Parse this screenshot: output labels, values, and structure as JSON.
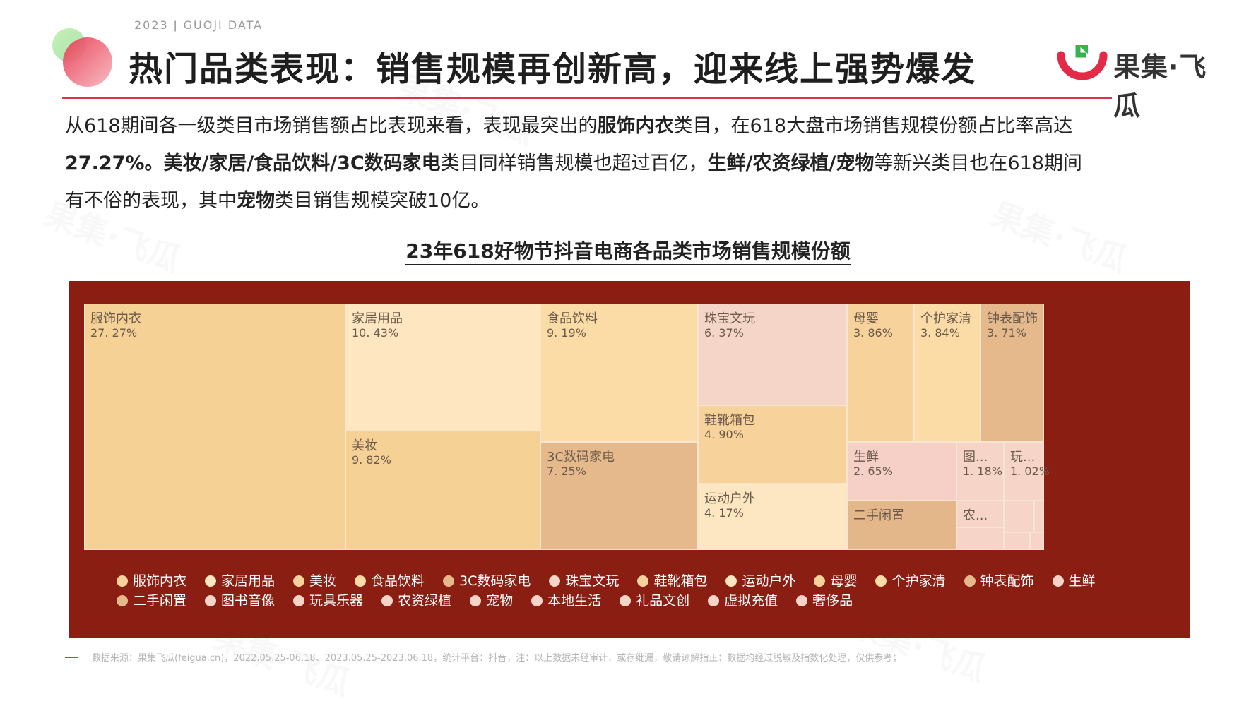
{
  "header": {
    "topline": "2023 ǀ GUOJI DATA",
    "title": "热门品类表现：销售规模再创新高，迎来线上强势爆发",
    "brand": "果集·飞瓜"
  },
  "colors": {
    "accent": "#d8344c",
    "panel": "#8b1e12"
  },
  "description": {
    "l1_a": "从618期间各一级类目市场销售额占比表现来看，表现最突出的",
    "l1_b": "服饰内衣",
    "l1_c": "类目，在618大盘市场销售规模份额占比率高达",
    "l2_a": "27.27%。美妆/家居/食品饮料/3C数码家电",
    "l2_b": "类目同样销售规模也超过百亿，",
    "l2_c": "生鲜/农资绿植/宠物",
    "l2_d": "等新兴类目也在618期间",
    "l3_a": "有不俗的表现，其中",
    "l3_b": "宠物",
    "l3_c": "类目销售规模突破10亿。"
  },
  "chart_data": {
    "type": "treemap",
    "title": "23年618好物节抖音电商各品类市场销售规模份额",
    "items": [
      {
        "name": "服饰内衣",
        "label": "服饰内衣",
        "value": 27.27,
        "value_label": "27. 27%",
        "color": "#f6d196"
      },
      {
        "name": "家居用品",
        "label": "家居用品",
        "value": 10.43,
        "value_label": "10. 43%",
        "color": "#fde6c0"
      },
      {
        "name": "美妆",
        "label": "美妆",
        "value": 9.82,
        "value_label": "9. 82%",
        "color": "#f6d196"
      },
      {
        "name": "食品饮料",
        "label": "食品饮料",
        "value": 9.19,
        "value_label": "9. 19%",
        "color": "#fbdba6"
      },
      {
        "name": "3C数码家电",
        "label": "3C数码家电",
        "value": 7.25,
        "value_label": "7. 25%",
        "color": "#e5b98c"
      },
      {
        "name": "珠宝文玩",
        "label": "珠宝文玩",
        "value": 6.37,
        "value_label": "6. 37%",
        "color": "#f5d5c7"
      },
      {
        "name": "鞋靴箱包",
        "label": "鞋靴箱包",
        "value": 4.9,
        "value_label": "4. 90%",
        "color": "#f7d29a"
      },
      {
        "name": "运动户外",
        "label": "运动户外",
        "value": 4.17,
        "value_label": "4. 17%",
        "color": "#fde7c2"
      },
      {
        "name": "母婴",
        "label": "母婴",
        "value": 3.86,
        "value_label": "3. 86%",
        "color": "#f7d29a"
      },
      {
        "name": "个护家清",
        "label": "个护家清",
        "value": 3.84,
        "value_label": "3. 84%",
        "color": "#fbdba6"
      },
      {
        "name": "钟表配饰",
        "label": "钟表配饰",
        "value": 3.71,
        "value_label": "3. 71%",
        "color": "#e5b98c"
      },
      {
        "name": "生鲜",
        "label": "生鲜",
        "value": 2.65,
        "value_label": "2. 65%",
        "color": "#f6cfc6"
      },
      {
        "name": "二手闲置",
        "label": "二手闲置",
        "value_label": "",
        "color": "#e4b78a"
      },
      {
        "name": "图书音像",
        "label": "图...",
        "value": 1.18,
        "value_label": "1. 18%",
        "color": "#f6d5c8"
      },
      {
        "name": "玩具乐器",
        "label": "玩...",
        "value": 1.02,
        "value_label": "1. 02%",
        "color": "#f6d5c8"
      },
      {
        "name": "农资绿植",
        "label": "农...",
        "value_label": "",
        "color": "#f6d5c8"
      },
      {
        "name": "宠物",
        "label": "",
        "value_label": "",
        "color": "#f6d5c8"
      },
      {
        "name": "本地生活",
        "label": "",
        "value_label": "",
        "color": "#f6d5c8"
      },
      {
        "name": "礼品文创",
        "label": "",
        "value_label": "",
        "color": "#f6d5c8"
      },
      {
        "name": "虚拟充值",
        "label": "",
        "value_label": "",
        "color": "#f6d5c8"
      },
      {
        "name": "奢侈品",
        "label": "",
        "value_label": "",
        "color": "#f6d5c8"
      }
    ],
    "legend": [
      {
        "name": "服饰内衣",
        "color": "#f7d29a"
      },
      {
        "name": "家居用品",
        "color": "#fde7c2"
      },
      {
        "name": "美妆",
        "color": "#f7d29a"
      },
      {
        "name": "食品饮料",
        "color": "#fbdba6"
      },
      {
        "name": "3C数码家电",
        "color": "#e5b98c"
      },
      {
        "name": "珠宝文玩",
        "color": "#f6d5c8"
      },
      {
        "name": "鞋靴箱包",
        "color": "#f7d29a"
      },
      {
        "name": "运动户外",
        "color": "#fde7c2"
      },
      {
        "name": "母婴",
        "color": "#f7d29a"
      },
      {
        "name": "个护家清",
        "color": "#fbdba6"
      },
      {
        "name": "钟表配饰",
        "color": "#e5b98c"
      },
      {
        "name": "生鲜",
        "color": "#f6d5c8"
      },
      {
        "name": "二手闲置",
        "color": "#e5b98c"
      },
      {
        "name": "图书音像",
        "color": "#f6d5c8"
      },
      {
        "name": "玩具乐器",
        "color": "#f6d5c8"
      },
      {
        "name": "农资绿植",
        "color": "#f6d5c8"
      },
      {
        "name": "宠物",
        "color": "#f6d5c8"
      },
      {
        "name": "本地生活",
        "color": "#f6d5c8"
      },
      {
        "name": "礼品文创",
        "color": "#f6d5c8"
      },
      {
        "name": "虚拟充值",
        "color": "#f6d5c8"
      },
      {
        "name": "奢侈品",
        "color": "#f6d5c8"
      }
    ],
    "legend_position": "bottom"
  },
  "footer": {
    "source": "数据来源：果集飞瓜(feigua.cn)，2022.05.25-06.18、2023.05.25-2023.06.18，统计平台：抖音，注：以上数据未经审计，或存纰漏，敬请谅解指正；数据均经过脱敏及指数化处理，仅供参考；"
  }
}
